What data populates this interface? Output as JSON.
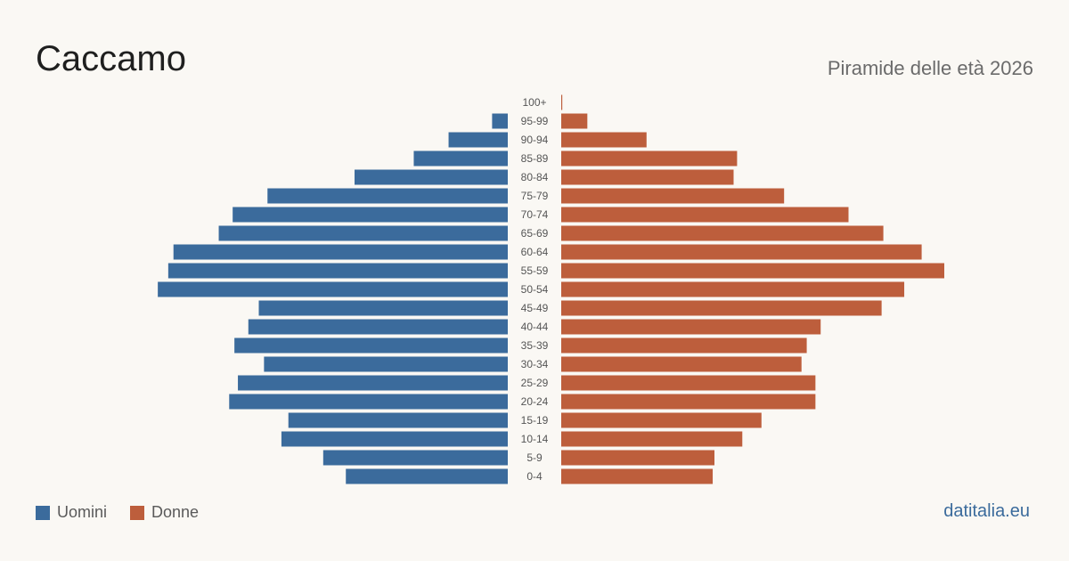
{
  "header": {
    "title": "Caccamo",
    "subtitle": "Piramide delle età 2026"
  },
  "legend": {
    "male_label": "Uomini",
    "female_label": "Donne"
  },
  "brand": "datitalia.eu",
  "colors": {
    "male": "#3b6b9c",
    "female": "#bd5e3c",
    "background": "#faf8f4",
    "label": "#555555"
  },
  "chart_data": {
    "type": "bar",
    "orientation": "horizontal",
    "categories": [
      "100+",
      "95-99",
      "90-94",
      "85-89",
      "80-84",
      "75-79",
      "70-74",
      "65-69",
      "60-64",
      "55-59",
      "50-54",
      "45-49",
      "40-44",
      "35-39",
      "30-34",
      "25-29",
      "20-24",
      "15-19",
      "10-14",
      "5-9",
      "0-4"
    ],
    "series": [
      {
        "name": "Uomini",
        "values": [
          0,
          9,
          34,
          54,
          88,
          138,
          158,
          166,
          192,
          195,
          201,
          143,
          149,
          157,
          140,
          155,
          160,
          126,
          130,
          106,
          93
        ]
      },
      {
        "name": "Donne",
        "values": [
          0.6,
          15,
          49,
          101,
          99,
          128,
          165,
          185,
          207,
          220,
          197,
          184,
          149,
          141,
          138,
          146,
          146,
          115,
          104,
          88,
          87
        ]
      }
    ],
    "xlim": [
      0,
      220
    ],
    "grid": false,
    "legend_position": "bottom-left"
  }
}
